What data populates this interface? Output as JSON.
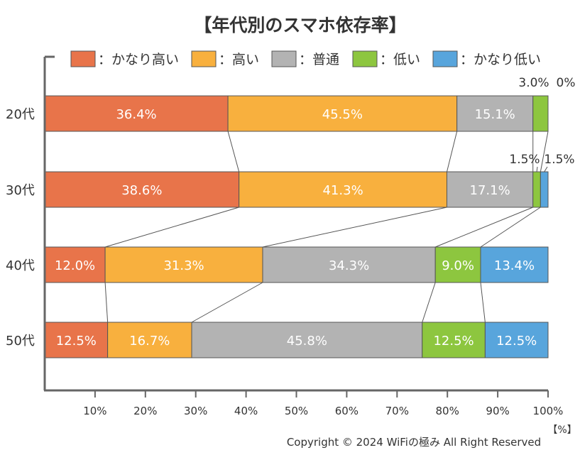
{
  "chart_data": {
    "type": "bar",
    "orientation": "horizontal",
    "stacked": true,
    "percent_stacked": true,
    "title": "【年代別のスマホ依存率】",
    "categories": [
      "20代",
      "30代",
      "40代",
      "50代"
    ],
    "series": [
      {
        "name": "：かなり高い",
        "color": "#e8744a",
        "values": [
          36.4,
          38.6,
          12.0,
          12.5
        ],
        "labels": [
          "36.4%",
          "38.6%",
          "12.0%",
          "12.5%"
        ]
      },
      {
        "name": "：高い",
        "color": "#f8b03e",
        "values": [
          45.5,
          41.3,
          31.3,
          16.7
        ],
        "labels": [
          "45.5%",
          "41.3%",
          "31.3%",
          "16.7%"
        ]
      },
      {
        "name": "：普通",
        "color": "#b3b3b3",
        "values": [
          15.1,
          17.1,
          34.3,
          45.8
        ],
        "labels": [
          "15.1%",
          "17.1%",
          "34.3%",
          "45.8%"
        ]
      },
      {
        "name": "：低い",
        "color": "#8dc63f",
        "values": [
          3.0,
          1.5,
          9.0,
          12.5
        ],
        "labels": [
          "3.0%",
          "1.5%",
          "9.0%",
          "12.5%"
        ]
      },
      {
        "name": "：かなり低い",
        "color": "#58a5dc",
        "values": [
          0,
          1.5,
          13.4,
          12.5
        ],
        "labels": [
          "0%",
          "1.5%",
          "13.4%",
          "12.5%"
        ]
      }
    ],
    "xlim": [
      0,
      100
    ],
    "x_ticks": [
      "10%",
      "20%",
      "30%",
      "40%",
      "50%",
      "60%",
      "70%",
      "80%",
      "90%",
      "100%"
    ],
    "x_unit": "【%】",
    "legend_position": "top",
    "series_connector_lines": true,
    "grid": false
  },
  "copyright": "Copyright © 2024 WiFiの極み All Right Reserved"
}
